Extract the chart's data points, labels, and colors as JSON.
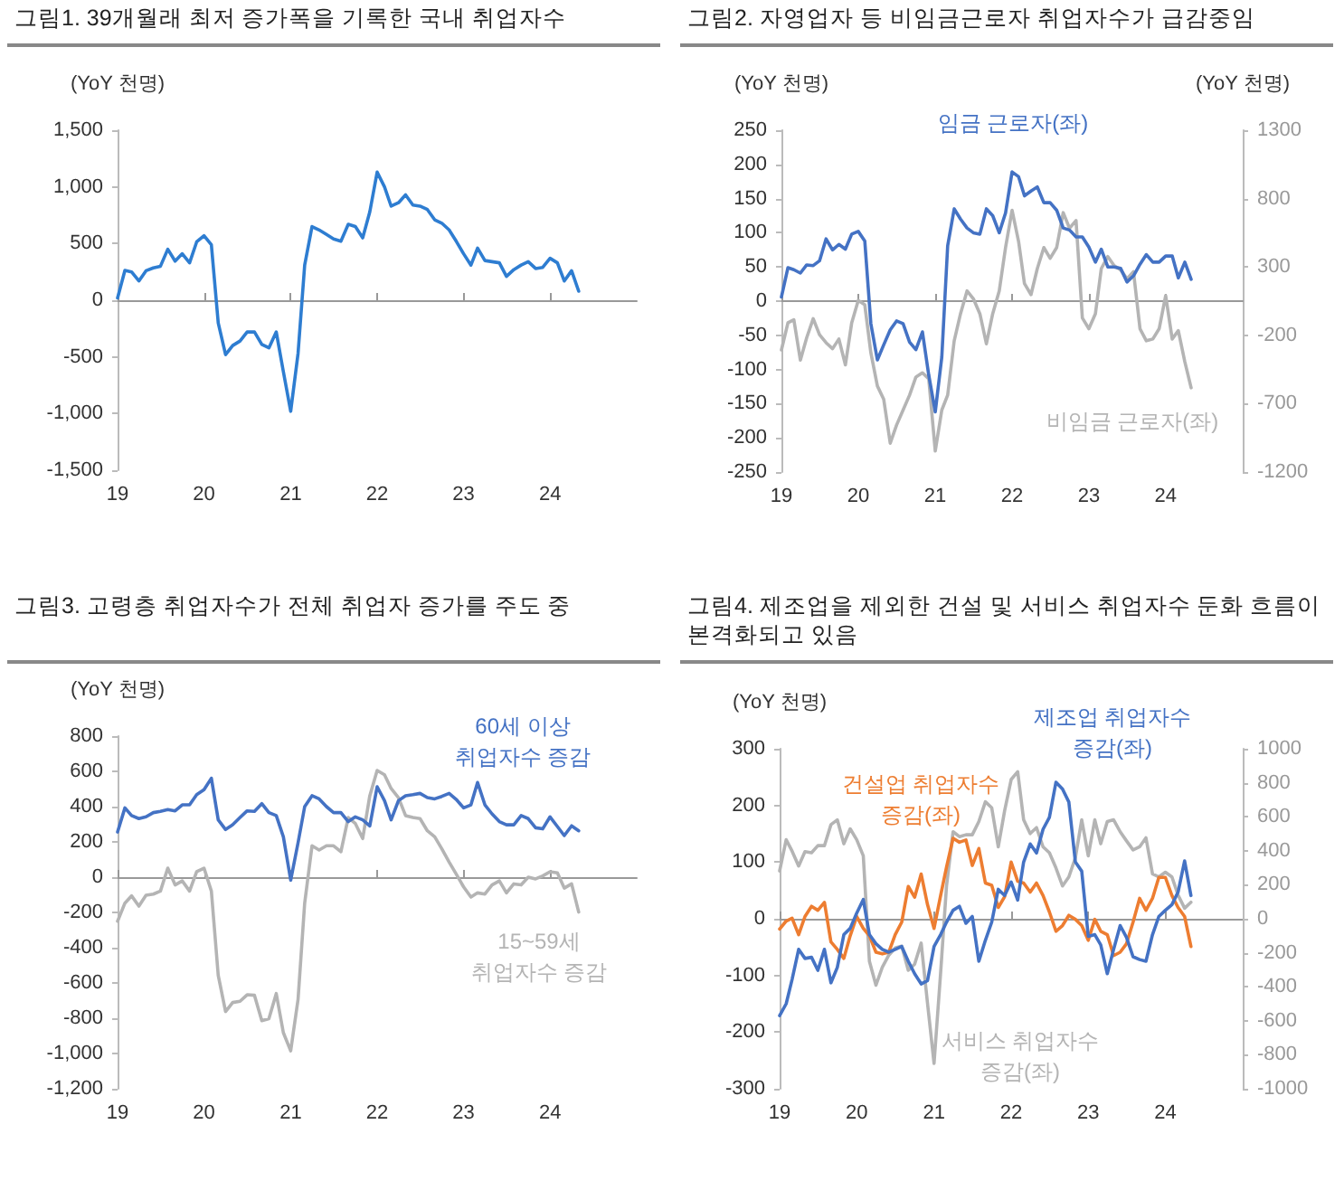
{
  "chart_data": [
    {
      "type": "line",
      "title": "그림1. 39개월래 최저 증가폭을 기록한 국내 취업자수",
      "ylabel": "(YoY 천명)",
      "x": [
        "2019-01",
        "2019-02",
        "2019-03",
        "2019-04",
        "2019-05",
        "2019-06",
        "2019-07",
        "2019-08",
        "2019-09",
        "2019-10",
        "2019-11",
        "2019-12",
        "2020-01",
        "2020-02",
        "2020-03",
        "2020-04",
        "2020-05",
        "2020-06",
        "2020-07",
        "2020-08",
        "2020-09",
        "2020-10",
        "2020-11",
        "2020-12",
        "2021-01",
        "2021-02",
        "2021-03",
        "2021-04",
        "2021-05",
        "2021-06",
        "2021-07",
        "2021-08",
        "2021-09",
        "2021-10",
        "2021-11",
        "2021-12",
        "2022-01",
        "2022-02",
        "2022-03",
        "2022-04",
        "2022-05",
        "2022-06",
        "2022-07",
        "2022-08",
        "2022-09",
        "2022-10",
        "2022-11",
        "2022-12",
        "2023-01",
        "2023-02",
        "2023-03",
        "2023-04",
        "2023-05",
        "2023-06",
        "2023-07",
        "2023-08",
        "2023-09",
        "2023-10",
        "2023-11",
        "2023-12",
        "2024-01",
        "2024-02",
        "2024-03",
        "2024-04",
        "2024-05"
      ],
      "series": [
        {
          "color": "#2e7dd1",
          "values": [
            20,
            263,
            250,
            170,
            260,
            285,
            300,
            450,
            345,
            410,
            330,
            515,
            570,
            490,
            -200,
            -480,
            -400,
            -360,
            -280,
            -280,
            -390,
            -420,
            -280,
            -630,
            -980,
            -470,
            310,
            650,
            620,
            580,
            540,
            520,
            670,
            650,
            550,
            780,
            1130,
            1000,
            830,
            860,
            930,
            840,
            830,
            800,
            710,
            680,
            620,
            520,
            410,
            310,
            460,
            350,
            340,
            330,
            210,
            270,
            310,
            340,
            280,
            290,
            370,
            330,
            170,
            260,
            80
          ]
        }
      ],
      "xlim": [
        "2019-01",
        "2025-01"
      ],
      "xticks": [
        {
          "value": "2019-01",
          "label": "19"
        },
        {
          "value": "2020-01",
          "label": "20"
        },
        {
          "value": "2021-01",
          "label": "21"
        },
        {
          "value": "2022-01",
          "label": "22"
        },
        {
          "value": "2023-01",
          "label": "23"
        },
        {
          "value": "2024-01",
          "label": "24"
        }
      ],
      "ylim": [
        -1500,
        1500
      ],
      "yticks": [
        {
          "value": -1500,
          "label": "-1,500"
        },
        {
          "value": -1000,
          "label": "-1,000"
        },
        -500,
        0,
        500,
        {
          "value": 1000,
          "label": "1,000"
        },
        {
          "value": 1500,
          "label": "1,500"
        }
      ]
    },
    {
      "type": "line",
      "title": "그림2. 자영업자 등 비임금근로자 취업자수가 급감중임",
      "ylabel": "(YoY 천명)",
      "y2label": "(YoY 천명)",
      "x": [
        "2019-01",
        "2019-02",
        "2019-03",
        "2019-04",
        "2019-05",
        "2019-06",
        "2019-07",
        "2019-08",
        "2019-09",
        "2019-10",
        "2019-11",
        "2019-12",
        "2020-01",
        "2020-02",
        "2020-03",
        "2020-04",
        "2020-05",
        "2020-06",
        "2020-07",
        "2020-08",
        "2020-09",
        "2020-10",
        "2020-11",
        "2020-12",
        "2021-01",
        "2021-02",
        "2021-03",
        "2021-04",
        "2021-05",
        "2021-06",
        "2021-07",
        "2021-08",
        "2021-09",
        "2021-10",
        "2021-11",
        "2021-12",
        "2022-01",
        "2022-02",
        "2022-03",
        "2022-04",
        "2022-05",
        "2022-06",
        "2022-07",
        "2022-08",
        "2022-09",
        "2022-10",
        "2022-11",
        "2022-12",
        "2023-01",
        "2023-02",
        "2023-03",
        "2023-04",
        "2023-05",
        "2023-06",
        "2023-07",
        "2023-08",
        "2023-09",
        "2023-10",
        "2023-11",
        "2023-12",
        "2024-01",
        "2024-02",
        "2024-03",
        "2024-04",
        "2024-05"
      ],
      "series": [
        {
          "name": "임금 근로자(좌)",
          "color": "#4472c4",
          "values": [
            6,
            49,
            46,
            41,
            53,
            52,
            59,
            91,
            75,
            83,
            76,
            98,
            102,
            88,
            -33,
            -86,
            -64,
            -42,
            -29,
            -33,
            -60,
            -71,
            -45,
            -108,
            -162,
            -82,
            81,
            135,
            120,
            107,
            100,
            98,
            135,
            125,
            100,
            129,
            189,
            182,
            154,
            161,
            167,
            144,
            144,
            133,
            107,
            104,
            94,
            94,
            79,
            57,
            76,
            50,
            50,
            48,
            28,
            37,
            54,
            68,
            57,
            57,
            66,
            66,
            34,
            57,
            32
          ]
        },
        {
          "name": "비임금 근로자(좌)",
          "color": "#b4b4b4",
          "axis": "y2",
          "values": [
            -307,
            -108,
            -86,
            -381,
            -218,
            -78,
            -196,
            -254,
            -298,
            -227,
            -416,
            -108,
            55,
            24,
            -328,
            -571,
            -667,
            -989,
            -857,
            -747,
            -637,
            -505,
            -474,
            -518,
            -1046,
            -747,
            -637,
            -240,
            -42,
            125,
            68,
            -42,
            -262,
            -42,
            125,
            442,
            715,
            486,
            178,
            98,
            288,
            442,
            363,
            442,
            697,
            583,
            640,
            -73,
            -152,
            -42,
            288,
            376,
            310,
            279,
            213,
            266,
            -152,
            -240,
            -227,
            -152,
            90,
            -227,
            -166,
            -394,
            -584
          ]
        }
      ],
      "xlim": [
        "2019-01",
        "2025-01"
      ],
      "xticks": [
        {
          "value": "2019-01",
          "label": "19"
        },
        {
          "value": "2020-01",
          "label": "20"
        },
        {
          "value": "2021-01",
          "label": "21"
        },
        {
          "value": "2022-01",
          "label": "22"
        },
        {
          "value": "2023-01",
          "label": "23"
        },
        {
          "value": "2024-01",
          "label": "24"
        }
      ],
      "ylim": [
        -250,
        250
      ],
      "yticks": [
        -250,
        -200,
        -150,
        -100,
        -50,
        0,
        50,
        100,
        150,
        200,
        250
      ],
      "y2lim": [
        -1200,
        1300
      ],
      "y2ticks": [
        -1200,
        -700,
        -200,
        300,
        800,
        1300
      ]
    },
    {
      "type": "line",
      "title": "그림3. 고령층 취업자수가 전체 취업자 증가를 주도 중",
      "ylabel": "(YoY 천명)",
      "x": [
        "2019-01",
        "2019-02",
        "2019-03",
        "2019-04",
        "2019-05",
        "2019-06",
        "2019-07",
        "2019-08",
        "2019-09",
        "2019-10",
        "2019-11",
        "2019-12",
        "2020-01",
        "2020-02",
        "2020-03",
        "2020-04",
        "2020-05",
        "2020-06",
        "2020-07",
        "2020-08",
        "2020-09",
        "2020-10",
        "2020-11",
        "2020-12",
        "2021-01",
        "2021-02",
        "2021-03",
        "2021-04",
        "2021-05",
        "2021-06",
        "2021-07",
        "2021-08",
        "2021-09",
        "2021-10",
        "2021-11",
        "2021-12",
        "2022-01",
        "2022-02",
        "2022-03",
        "2022-04",
        "2022-05",
        "2022-06",
        "2022-07",
        "2022-08",
        "2022-09",
        "2022-10",
        "2022-11",
        "2022-12",
        "2023-01",
        "2023-02",
        "2023-03",
        "2023-04",
        "2023-05",
        "2023-06",
        "2023-07",
        "2023-08",
        "2023-09",
        "2023-10",
        "2023-11",
        "2023-12",
        "2024-01",
        "2024-02",
        "2024-03",
        "2024-04",
        "2024-05"
      ],
      "series": [
        {
          "name": "60세 이상 취업자수 증감",
          "color": "#4472c4",
          "values": [
            256,
            393,
            349,
            332,
            342,
            366,
            373,
            383,
            376,
            410,
            410,
            468,
            496,
            561,
            325,
            270,
            297,
            338,
            376,
            373,
            417,
            366,
            349,
            229,
            -17,
            195,
            400,
            462,
            444,
            400,
            366,
            366,
            315,
            342,
            325,
            291,
            513,
            434,
            325,
            434,
            462,
            468,
            475,
            451,
            444,
            458,
            475,
            441,
            393,
            410,
            537,
            410,
            359,
            315,
            297,
            297,
            349,
            332,
            280,
            274,
            342,
            287,
            236,
            291,
            263
          ]
        },
        {
          "name": "15~59세 취업자수 증감",
          "color": "#b4b4b4",
          "values": [
            -250,
            -147,
            -106,
            -164,
            -103,
            -96,
            -79,
            51,
            -44,
            -21,
            -79,
            31,
            51,
            -79,
            -557,
            -762,
            -711,
            -704,
            -667,
            -670,
            -814,
            -803,
            -660,
            -882,
            -985,
            -694,
            -147,
            178,
            154,
            178,
            178,
            144,
            338,
            304,
            219,
            462,
            605,
            581,
            503,
            451,
            349,
            338,
            332,
            263,
            229,
            161,
            85,
            17,
            -55,
            -113,
            -89,
            -96,
            -44,
            -21,
            -89,
            -38,
            -44,
            0,
            -10,
            7,
            31,
            24,
            -62,
            -38,
            -198
          ]
        }
      ],
      "xlim": [
        "2019-01",
        "2025-01"
      ],
      "xticks": [
        {
          "value": "2019-01",
          "label": "19"
        },
        {
          "value": "2020-01",
          "label": "20"
        },
        {
          "value": "2021-01",
          "label": "21"
        },
        {
          "value": "2022-01",
          "label": "22"
        },
        {
          "value": "2023-01",
          "label": "23"
        },
        {
          "value": "2024-01",
          "label": "24"
        }
      ],
      "ylim": [
        -1200,
        800
      ],
      "yticks": [
        {
          "value": -1200,
          "label": "-1,200"
        },
        {
          "value": -1000,
          "label": "-1,000"
        },
        -800,
        -600,
        -400,
        -200,
        0,
        200,
        400,
        600,
        800
      ]
    },
    {
      "type": "line",
      "title": "그림4. 제조업을 제외한 건설 및 서비스 취업자수 둔화 흐름이 본격화되고 있음",
      "ylabel": "(YoY 천명)",
      "x": [
        "2019-01",
        "2019-02",
        "2019-03",
        "2019-04",
        "2019-05",
        "2019-06",
        "2019-07",
        "2019-08",
        "2019-09",
        "2019-10",
        "2019-11",
        "2019-12",
        "2020-01",
        "2020-02",
        "2020-03",
        "2020-04",
        "2020-05",
        "2020-06",
        "2020-07",
        "2020-08",
        "2020-09",
        "2020-10",
        "2020-11",
        "2020-12",
        "2021-01",
        "2021-02",
        "2021-03",
        "2021-04",
        "2021-05",
        "2021-06",
        "2021-07",
        "2021-08",
        "2021-09",
        "2021-10",
        "2021-11",
        "2021-12",
        "2022-01",
        "2022-02",
        "2022-03",
        "2022-04",
        "2022-05",
        "2022-06",
        "2022-07",
        "2022-08",
        "2022-09",
        "2022-10",
        "2022-11",
        "2022-12",
        "2023-01",
        "2023-02",
        "2023-03",
        "2023-04",
        "2023-05",
        "2023-06",
        "2023-07",
        "2023-08",
        "2023-09",
        "2023-10",
        "2023-11",
        "2023-12",
        "2024-01",
        "2024-02",
        "2024-03",
        "2024-04",
        "2024-05"
      ],
      "series": [
        {
          "name": "제조업 취업자수 증감(좌)",
          "color": "#4472c4",
          "values": [
            -171,
            -150,
            -107,
            -54,
            -70,
            -68,
            -91,
            -54,
            -113,
            -86,
            -28,
            -17,
            10,
            34,
            -28,
            -44,
            -54,
            -59,
            -54,
            -49,
            -75,
            -97,
            -115,
            -109,
            -49,
            -28,
            -6,
            15,
            22,
            -8,
            4,
            -75,
            -38,
            -6,
            52,
            41,
            65,
            33,
            100,
            132,
            116,
            158,
            179,
            241,
            229,
            206,
            100,
            84,
            -31,
            -28,
            -46,
            -97,
            -54,
            -12,
            -33,
            -67,
            -72,
            -75,
            -28,
            4,
            15,
            25,
            47,
            102,
            41
          ]
        },
        {
          "name": "건설업 취업자수 증감(좌)",
          "color": "#ed7d31",
          "values": [
            -18,
            -4,
            1,
            -28,
            4,
            22,
            15,
            29,
            -41,
            -54,
            -70,
            -30,
            4,
            -17,
            -30,
            -59,
            -62,
            -59,
            -28,
            -6,
            57,
            38,
            79,
            25,
            -17,
            41,
            91,
            142,
            135,
            139,
            94,
            124,
            63,
            59,
            20,
            39,
            100,
            66,
            63,
            47,
            63,
            41,
            12,
            -22,
            -12,
            6,
            -1,
            -12,
            -38,
            -1,
            -22,
            -28,
            -65,
            -59,
            -44,
            -6,
            36,
            15,
            36,
            73,
            73,
            41,
            20,
            4,
            -49
          ]
        },
        {
          "name": "서비스 취업자수 증감(좌)",
          "color": "#b4b4b4",
          "axis": "y2",
          "values": [
            281,
            465,
            398,
            310,
            395,
            388,
            430,
            430,
            554,
            582,
            441,
            529,
            465,
            370,
            -250,
            -391,
            -285,
            -214,
            -172,
            -161,
            -303,
            -267,
            -143,
            -497,
            -851,
            -320,
            193,
            512,
            483,
            494,
            494,
            572,
            688,
            653,
            423,
            635,
            819,
            865,
            582,
            501,
            536,
            423,
            388,
            299,
            193,
            246,
            359,
            582,
            370,
            582,
            441,
            572,
            582,
            512,
            458,
            405,
            423,
            476,
            264,
            246,
            274,
            246,
            140,
            62,
            97
          ]
        }
      ],
      "xlim": [
        "2019-01",
        "2025-01"
      ],
      "xticks": [
        {
          "value": "2019-01",
          "label": "19"
        },
        {
          "value": "2020-01",
          "label": "20"
        },
        {
          "value": "2021-01",
          "label": "21"
        },
        {
          "value": "2022-01",
          "label": "22"
        },
        {
          "value": "2023-01",
          "label": "23"
        },
        {
          "value": "2024-01",
          "label": "24"
        }
      ],
      "ylim": [
        -300,
        300
      ],
      "yticks": [
        -300,
        -200,
        -100,
        0,
        100,
        200,
        300
      ],
      "y2lim": [
        -1000,
        1000
      ],
      "y2ticks": [
        -1000,
        -800,
        -600,
        -400,
        -200,
        0,
        200,
        400,
        600,
        800,
        1000
      ]
    }
  ]
}
